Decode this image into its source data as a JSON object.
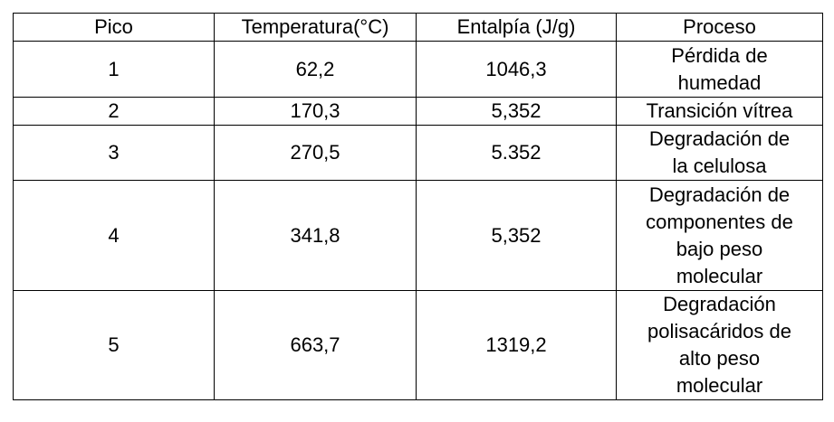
{
  "table": {
    "header": [
      "Pico",
      "Temperatura(°C)",
      "Entalpía (J/g)",
      "Proceso"
    ],
    "rows": [
      [
        "1",
        "62,2",
        "1046,3",
        [
          "Pérdida de",
          "humedad"
        ]
      ],
      [
        "2",
        "170,3",
        "5,352",
        [
          "Transición vítrea"
        ]
      ],
      [
        "3",
        "270,5",
        "5.352",
        [
          "Degradación de",
          "la celulosa"
        ]
      ],
      [
        "4",
        "341,8",
        "5,352",
        [
          "Degradación de",
          "componentes de",
          "bajo peso",
          "molecular"
        ]
      ],
      [
        "5",
        "663,7",
        "1319,2",
        [
          "Degradación",
          "polisacáridos de",
          "alto peso",
          "molecular"
        ]
      ]
    ]
  }
}
